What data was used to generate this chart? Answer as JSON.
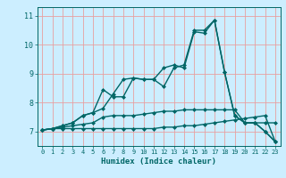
{
  "xlabel": "Humidex (Indice chaleur)",
  "ylabel": "",
  "bg_color": "#cceeff",
  "grid_color": "#e8a0a0",
  "line_color": "#006666",
  "xlim": [
    -0.5,
    23.5
  ],
  "ylim": [
    6.5,
    11.3
  ],
  "xticks": [
    0,
    1,
    2,
    3,
    4,
    5,
    6,
    7,
    8,
    9,
    10,
    11,
    12,
    13,
    14,
    15,
    16,
    17,
    18,
    19,
    20,
    21,
    22,
    23
  ],
  "yticks": [
    7,
    8,
    9,
    10,
    11
  ],
  "line1_x": [
    0,
    1,
    2,
    3,
    4,
    5,
    6,
    7,
    8,
    9,
    10,
    11,
    12,
    13,
    14,
    15,
    16,
    17,
    18,
    19,
    20,
    21,
    22,
    23
  ],
  "line1_y": [
    7.05,
    7.1,
    7.1,
    7.1,
    7.1,
    7.1,
    7.1,
    7.1,
    7.1,
    7.1,
    7.1,
    7.1,
    7.15,
    7.15,
    7.2,
    7.2,
    7.25,
    7.3,
    7.35,
    7.4,
    7.45,
    7.5,
    7.55,
    6.65
  ],
  "line2_x": [
    0,
    1,
    2,
    3,
    4,
    5,
    6,
    7,
    8,
    9,
    10,
    11,
    12,
    13,
    14,
    15,
    16,
    17,
    18,
    19,
    20,
    21,
    22,
    23
  ],
  "line2_y": [
    7.05,
    7.1,
    7.15,
    7.2,
    7.25,
    7.3,
    7.5,
    7.55,
    7.55,
    7.55,
    7.6,
    7.65,
    7.7,
    7.7,
    7.75,
    7.75,
    7.75,
    7.75,
    7.75,
    7.75,
    7.3,
    7.3,
    7.3,
    7.3
  ],
  "line3_x": [
    0,
    1,
    2,
    3,
    4,
    5,
    6,
    7,
    8,
    9,
    10,
    11,
    12,
    13,
    14,
    15,
    16,
    17,
    18,
    19,
    20,
    21,
    22,
    23
  ],
  "line3_y": [
    7.05,
    7.1,
    7.2,
    7.3,
    7.55,
    7.65,
    8.45,
    8.2,
    8.2,
    8.85,
    8.8,
    8.8,
    8.55,
    9.2,
    9.3,
    10.5,
    10.5,
    10.85,
    9.05,
    7.55,
    7.3,
    7.3,
    7.0,
    6.65
  ],
  "line4_x": [
    0,
    1,
    2,
    3,
    4,
    5,
    6,
    7,
    8,
    9,
    10,
    11,
    12,
    13,
    14,
    15,
    16,
    17,
    18,
    19,
    20,
    21,
    22,
    23
  ],
  "line4_y": [
    7.05,
    7.1,
    7.2,
    7.3,
    7.55,
    7.65,
    7.8,
    8.3,
    8.8,
    8.85,
    8.8,
    8.8,
    9.2,
    9.3,
    9.2,
    10.45,
    10.4,
    10.85,
    9.05,
    7.55,
    7.3,
    7.3,
    7.0,
    6.65
  ],
  "marker": "D",
  "marker_size": 2,
  "line_width": 1.0
}
